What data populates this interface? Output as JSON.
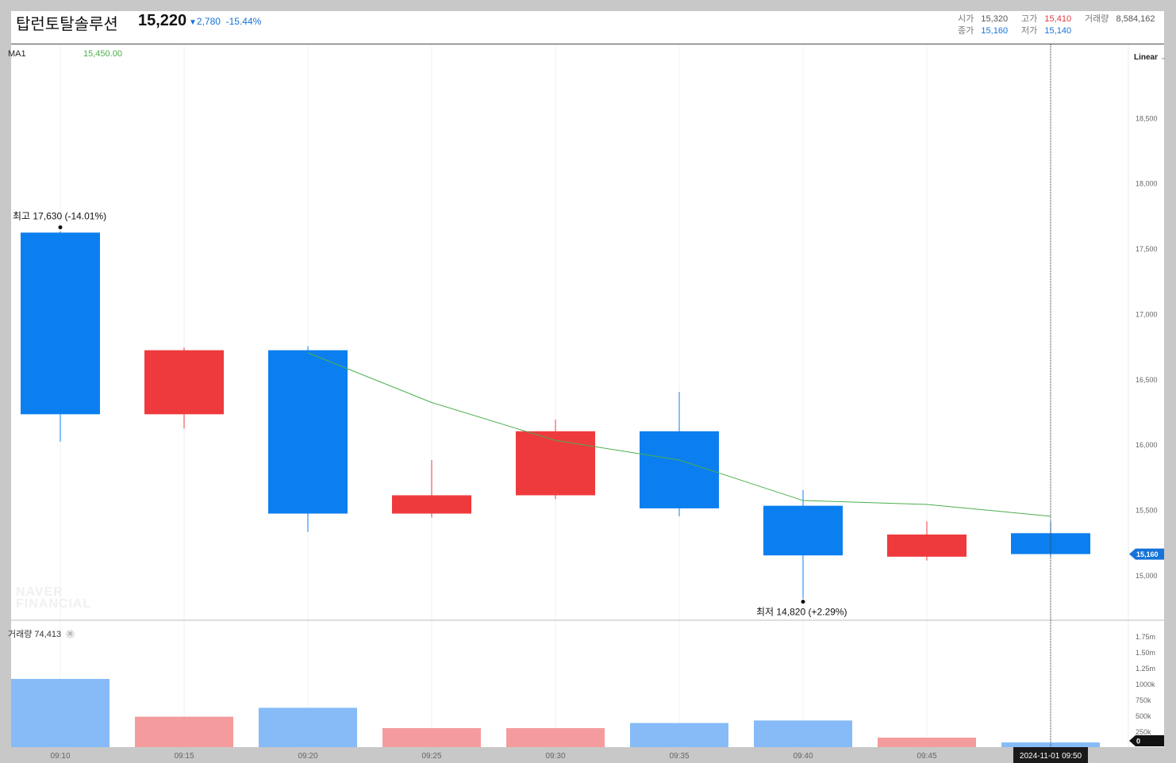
{
  "header": {
    "title": "탑런토탈솔루션",
    "price": "15,220",
    "change_arrow": "▼",
    "change": "2,780",
    "change_pct": "-15.44%",
    "ohlc": {
      "open_label": "시가",
      "open": "15,320",
      "high_label": "고가",
      "high": "15,410",
      "volume_label": "거래량",
      "volume": "8,584,162",
      "close_label": "종가",
      "close": "15,160",
      "low_label": "저가",
      "low": "15,140"
    }
  },
  "indicator": {
    "ma_label": "MA1",
    "ma_value": "15,450.00"
  },
  "scale_button": {
    "label": "Linear",
    "icon": "chevron-down-icon"
  },
  "volume_panel": {
    "label": "거래량 74,413",
    "close_icon": "close-icon"
  },
  "watermark": [
    "NAVER",
    "FINANCIAL"
  ],
  "colors": {
    "up": "#ef3a3d",
    "down": "#0c7ff0",
    "vol_up": "#f49c9d",
    "vol_down": "#86bbf7",
    "ma": "#4cae4c"
  },
  "chart_data": {
    "type": "candlestick",
    "x": [
      "09:10",
      "09:15",
      "09:20",
      "09:25",
      "09:30",
      "09:35",
      "09:40",
      "09:45",
      "09:50"
    ],
    "open": [
      17620,
      16230,
      16720,
      15470,
      15610,
      16100,
      15530,
      15140,
      15320
    ],
    "high": [
      17630,
      16740,
      16750,
      15880,
      16190,
      16400,
      15650,
      15410,
      15410
    ],
    "low": [
      16020,
      16120,
      15330,
      15440,
      15580,
      15450,
      14820,
      15110,
      15140
    ],
    "close": [
      16230,
      16720,
      15470,
      15610,
      16100,
      15510,
      15150,
      15310,
      15160
    ],
    "ma": {
      "name": "MA1",
      "values": [
        null,
        null,
        16700,
        16320,
        16030,
        15880,
        15570,
        15540,
        15450
      ]
    },
    "volume": [
      1075000,
      480000,
      620000,
      300000,
      300000,
      380000,
      420000,
      150000,
      74413
    ],
    "price_axis": {
      "ticks": [
        18500,
        18000,
        17500,
        17000,
        16500,
        16000,
        15500,
        15000
      ],
      "tick_labels": [
        "18,500",
        "18,000",
        "17,500",
        "17,000",
        "16,500",
        "16,000",
        "15,500",
        "15,000"
      ],
      "range": [
        14660,
        19060
      ]
    },
    "volume_axis": {
      "ticks": [
        1750000,
        1500000,
        1250000,
        1000000,
        750000,
        500000,
        250000
      ],
      "tick_labels": [
        "1.75m",
        "1.50m",
        "1.25m",
        "1000k",
        "750k",
        "500k",
        "250k"
      ],
      "range": [
        0,
        2000000
      ],
      "current_label": "0"
    },
    "annotations": {
      "high": {
        "label": "최고 17,630 (-14.01%)",
        "index": 0,
        "value": 17630
      },
      "low": {
        "label": "최저 14,820 (+2.29%)",
        "index": 6,
        "value": 14820
      }
    },
    "last_price": {
      "value": 15160,
      "label": "15,160"
    },
    "crosshair": {
      "index": 8,
      "label": "2024-11-01 09:50"
    },
    "grid": true
  }
}
